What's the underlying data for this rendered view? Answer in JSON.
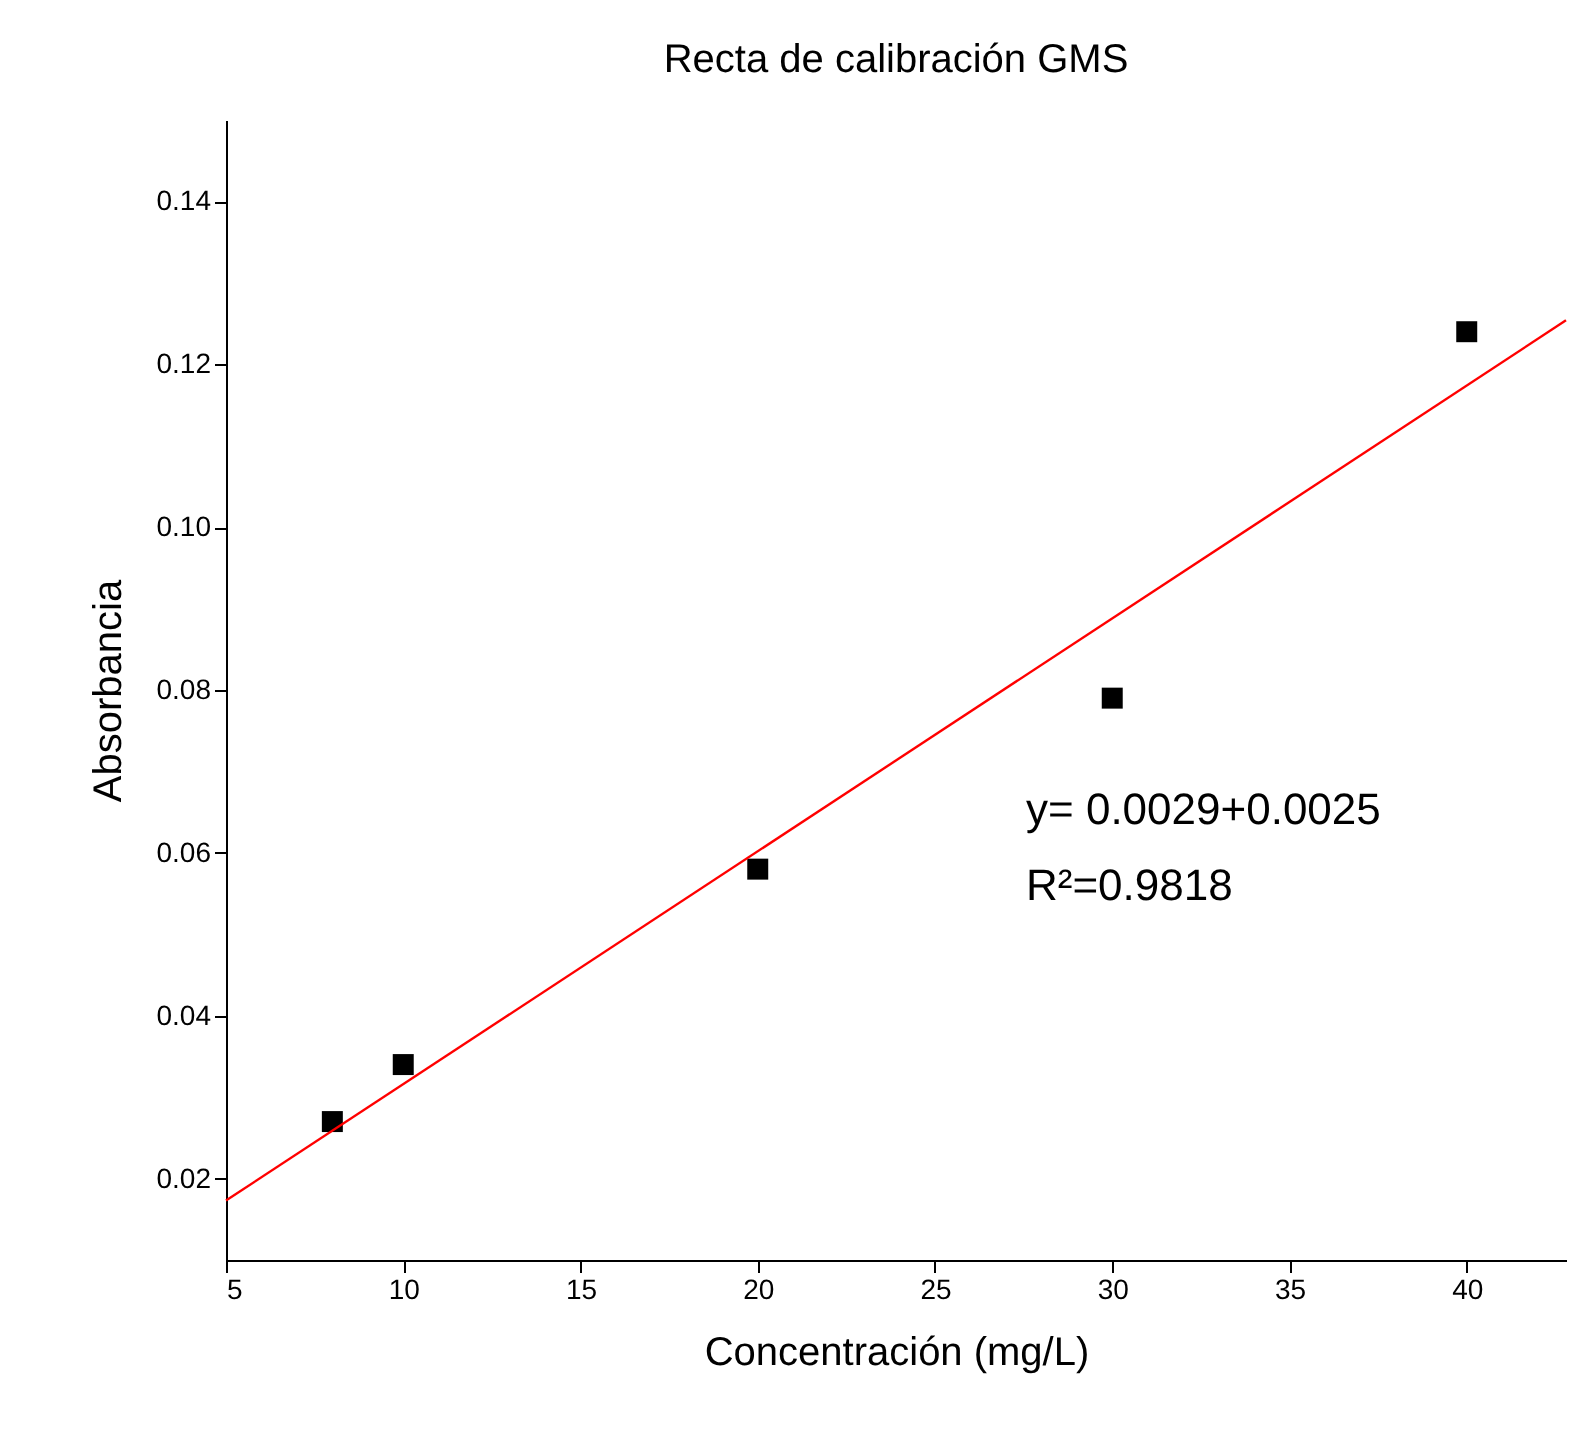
{
  "chart_data": {
    "type": "scatter",
    "title": "Recta de calibración GMS",
    "xlabel": "Concentración (mg/L)",
    "ylabel": "Absorbancia",
    "x": [
      8,
      10,
      20,
      30,
      40
    ],
    "series": [
      {
        "type": "scatter",
        "color": "#000000",
        "marker": "square",
        "values": [
          0.027,
          0.034,
          0.058,
          0.079,
          0.124
        ]
      },
      {
        "type": "line",
        "color": "#ff0000",
        "x": [
          5,
          42.8
        ],
        "values": [
          0.0173,
          0.1254
        ],
        "marker": "none",
        "line_style": "solid"
      }
    ],
    "xlim": [
      5,
      42.8
    ],
    "ylim": [
      0.01,
      0.15
    ],
    "xticks": [
      5,
      10,
      15,
      20,
      25,
      30,
      35,
      40
    ],
    "yticks": [
      0.02,
      0.04,
      0.06,
      0.08,
      {
        "value": 0.1,
        "label": "0.10"
      },
      0.12,
      0.14
    ],
    "grid": false,
    "annotations": [
      "y= 0.0029+0.0025",
      "R²=0.9818"
    ]
  }
}
